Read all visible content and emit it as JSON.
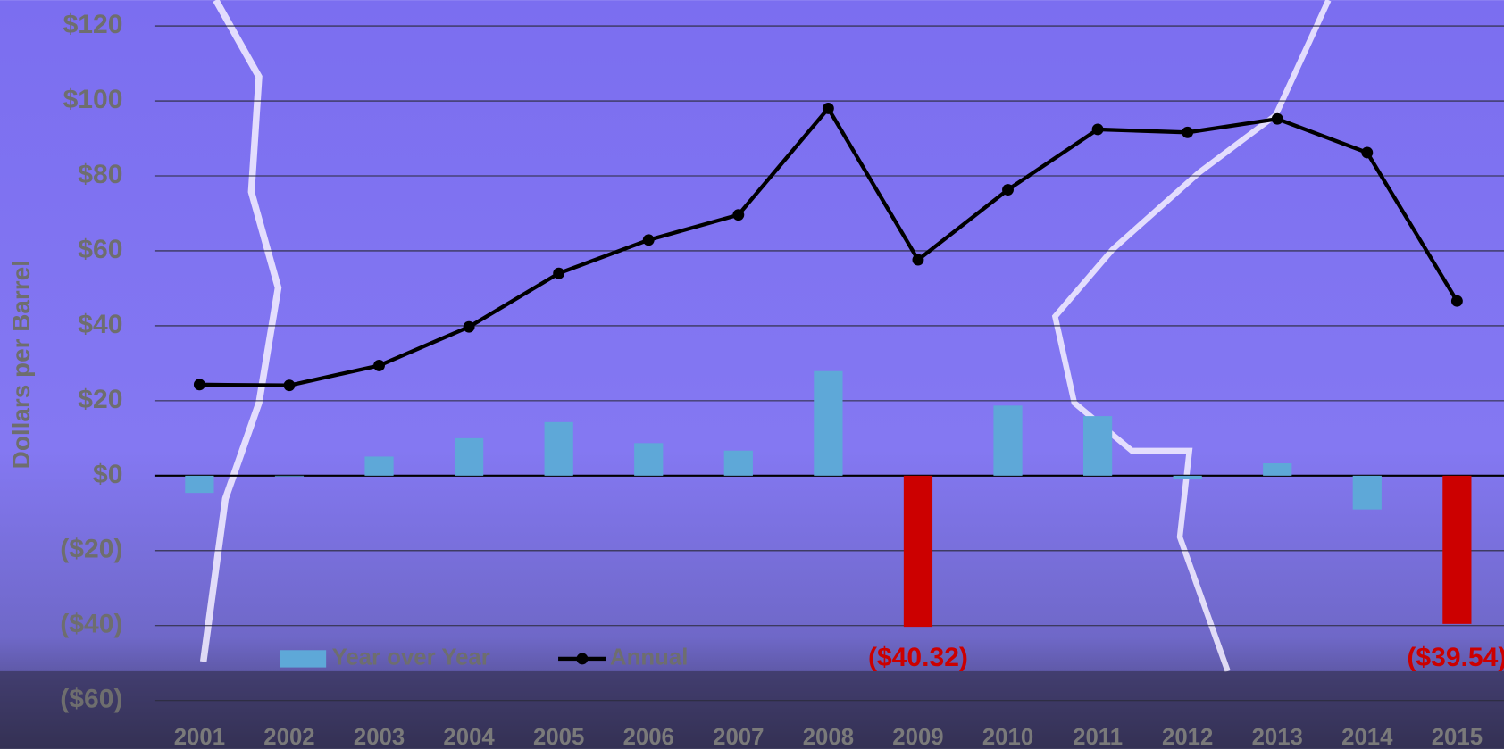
{
  "chart_data": {
    "type": "bar_line",
    "y_axis_label": "Dollars per Barrel",
    "categories": [
      "2001",
      "2002",
      "2003",
      "2004",
      "2005",
      "2006",
      "2007",
      "2008",
      "2009",
      "2010",
      "2011",
      "2012",
      "2013",
      "2014",
      "2015"
    ],
    "series": [
      {
        "name": "Year over Year",
        "type": "bar",
        "color": "#5ea8d8",
        "colors": [
          "#5ea8d8",
          "#5ea8d8",
          "#5ea8d8",
          "#5ea8d8",
          "#5ea8d8",
          "#5ea8d8",
          "#5ea8d8",
          "#5ea8d8",
          "#cc0000",
          "#5ea8d8",
          "#5ea8d8",
          "#5ea8d8",
          "#5ea8d8",
          "#5ea8d8",
          "#cc0000"
        ],
        "values": [
          -4.6,
          -0.2,
          5.1,
          10.0,
          14.3,
          8.7,
          6.7,
          27.9,
          -40.32,
          18.7,
          15.9,
          -0.8,
          3.3,
          -9.0,
          -39.54
        ],
        "value_labels": [
          null,
          null,
          null,
          null,
          null,
          null,
          null,
          null,
          "($40.32)",
          null,
          null,
          null,
          null,
          null,
          "($39.54)"
        ],
        "value_label_color": "#cc0000"
      },
      {
        "name": "Annual",
        "type": "line",
        "color": "#000000",
        "values": [
          24.3,
          24.1,
          29.4,
          39.7,
          54.0,
          62.9,
          69.6,
          98.0,
          57.6,
          76.3,
          92.4,
          91.6,
          95.2,
          86.2,
          46.6
        ]
      }
    ],
    "ylim": [
      -72.9,
      126.9
    ],
    "yticks": [
      {
        "value": -60,
        "label": "($60)"
      },
      {
        "value": -40,
        "label": "($40)"
      },
      {
        "value": -20,
        "label": "($20)"
      },
      {
        "value": 0,
        "label": "$0"
      },
      {
        "value": 20,
        "label": "$20"
      },
      {
        "value": 40,
        "label": "$40"
      },
      {
        "value": 60,
        "label": "$60"
      },
      {
        "value": 80,
        "label": "$80"
      },
      {
        "value": 100,
        "label": "$100"
      },
      {
        "value": 120,
        "label": "$120"
      }
    ],
    "grid": true
  }
}
